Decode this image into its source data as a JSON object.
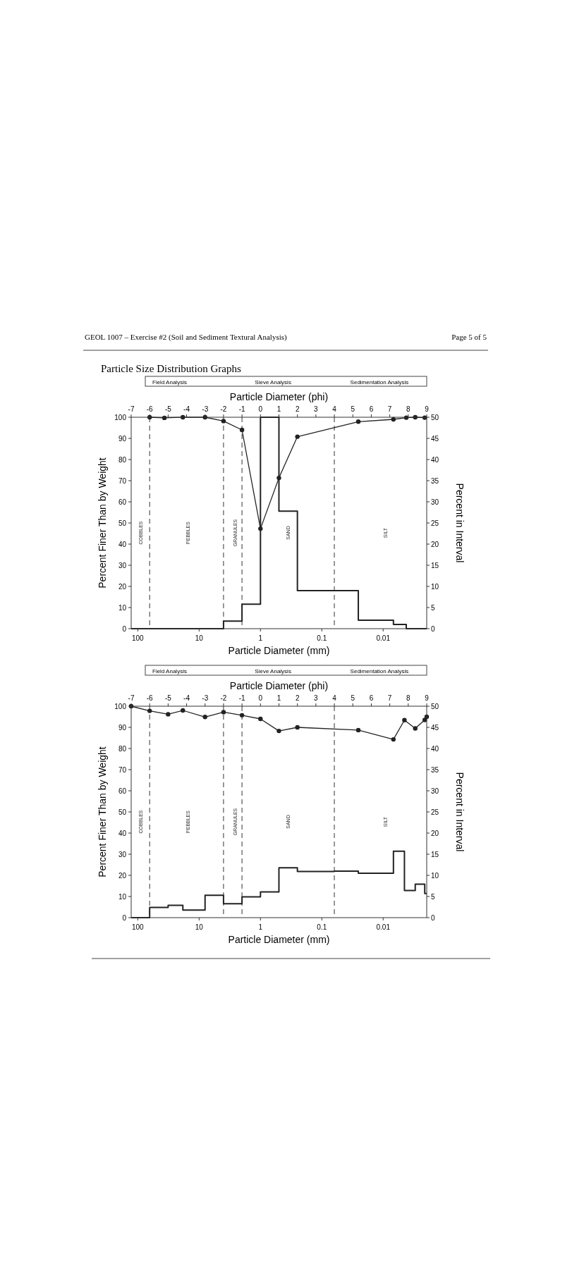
{
  "chart_data": [
    {
      "type": "line",
      "title": "Particle Size Distribution Graphs",
      "annotations": [
        "GEOL 1007 – Exercise #2 (Soil and Sediment Textural Analysis)",
        "Page 5 of 5",
        "Field Analysis",
        "Sieve Analysis",
        "Sedimentation Analysis",
        "COBBLES",
        "PEBBLES",
        "GRANULES",
        "SAND",
        "SILT"
      ],
      "xlabel": "Particle Diameter (mm)",
      "x2label": "Particle Diameter (phi)",
      "ylabel": "Percent Finer Than by Weight",
      "y2label": "Percent in Interval",
      "log": "x",
      "xlim": [
        128,
        0.00195
      ],
      "xticks": [
        100,
        10,
        1,
        0.1,
        0.01
      ],
      "x2lim": [
        -7,
        9
      ],
      "x2ticks": [
        -7,
        -6,
        -5,
        -4,
        -3,
        -2,
        -1,
        0,
        1,
        2,
        3,
        4,
        5,
        6,
        7,
        8,
        9
      ],
      "ylim": [
        0,
        100
      ],
      "yticks": [
        0,
        10,
        20,
        30,
        40,
        50,
        60,
        70,
        80,
        90,
        100
      ],
      "y2lim": [
        0,
        50
      ],
      "y2ticks": [
        0,
        5,
        10,
        15,
        20,
        25,
        30,
        35,
        40,
        45,
        50
      ],
      "ref_lines": [
        {
          "axis": "x",
          "value": 64,
          "line_style": "dashed"
        },
        {
          "axis": "x",
          "value": 4,
          "line_style": "dashed"
        },
        {
          "axis": "x",
          "value": 2,
          "line_style": "dashed"
        },
        {
          "axis": "x",
          "value": 0.0625,
          "line_style": "dashed"
        }
      ],
      "series": [
        {
          "color": "#222222",
          "marker": "circle",
          "x": [
            64,
            36.8,
            18.4,
            8,
            4,
            2,
            1,
            0.5,
            0.25,
            0.0254,
            0.0068,
            0.0042,
            0.003,
            0.0021
          ],
          "values": [
            100,
            99.7,
            100,
            100,
            98.2,
            94,
            47.3,
            71.3,
            90.8,
            97.9,
            99,
            99.8,
            100,
            99.8
          ]
        },
        {
          "type": "step",
          "axis": "y2",
          "color": "#222222",
          "marker": "none",
          "x": [
            128,
            4,
            2,
            1,
            0.5,
            0.25,
            0.0254,
            0.0068,
            0.0042,
            0.00195
          ],
          "values": [
            0,
            1.8,
            5.8,
            50,
            27.8,
            9,
            2,
            1,
            0,
            0
          ]
        }
      ]
    },
    {
      "type": "line",
      "annotations": [
        "Field Analysis",
        "Sieve Analysis",
        "Sedimentation Analysis",
        "COBBLES",
        "PEBBLES",
        "GRANULES",
        "SAND",
        "SILT"
      ],
      "xlabel": "Particle Diameter (mm)",
      "x2label": "Particle Diameter (phi)",
      "ylabel": "Percent Finer Than by Weight",
      "y2label": "Percent in Interval",
      "log": "x",
      "xlim": [
        128,
        0.00195
      ],
      "xticks": [
        100,
        10,
        1,
        0.1,
        0.01
      ],
      "x2lim": [
        -7,
        9
      ],
      "x2ticks": [
        -7,
        -6,
        -5,
        -4,
        -3,
        -2,
        -1,
        0,
        1,
        2,
        3,
        4,
        5,
        6,
        7,
        8,
        9
      ],
      "ylim": [
        0,
        100
      ],
      "yticks": [
        0,
        10,
        20,
        30,
        40,
        50,
        60,
        70,
        80,
        90,
        100
      ],
      "y2lim": [
        0,
        50
      ],
      "y2ticks": [
        0,
        5,
        10,
        15,
        20,
        25,
        30,
        35,
        40,
        45,
        50
      ],
      "ref_lines": [
        {
          "axis": "x",
          "value": 64,
          "line_style": "dashed"
        },
        {
          "axis": "x",
          "value": 4,
          "line_style": "dashed"
        },
        {
          "axis": "x",
          "value": 2,
          "line_style": "dashed"
        },
        {
          "axis": "x",
          "value": 0.0625,
          "line_style": "dashed"
        }
      ],
      "series": [
        {
          "color": "#222222",
          "marker": "circle",
          "x": [
            128,
            64,
            32,
            18.4,
            8,
            4,
            2,
            1,
            0.5,
            0.25,
            0.0254,
            0.0068,
            0.0045,
            0.003,
            0.0021,
            0.00195
          ],
          "values": [
            100,
            97.8,
            96.2,
            98,
            94.9,
            97.2,
            95.7,
            94,
            88.3,
            90,
            88.7,
            84.3,
            93.4,
            89.5,
            93.5,
            95
          ]
        },
        {
          "type": "step",
          "axis": "y2",
          "color": "#222222",
          "marker": "none",
          "x": [
            128,
            64,
            32,
            18.4,
            8,
            4,
            2,
            1,
            0.5,
            0.25,
            0.0625,
            0.0254,
            0.0068,
            0.0045,
            0.003,
            0.0021,
            0.00195
          ],
          "values": [
            0,
            2.4,
            2.9,
            1.8,
            5.3,
            3.3,
            4.9,
            6.1,
            11.8,
            10.9,
            11,
            10.5,
            15.7,
            6.4,
            7.9,
            5.7,
            5.7
          ]
        }
      ]
    }
  ]
}
